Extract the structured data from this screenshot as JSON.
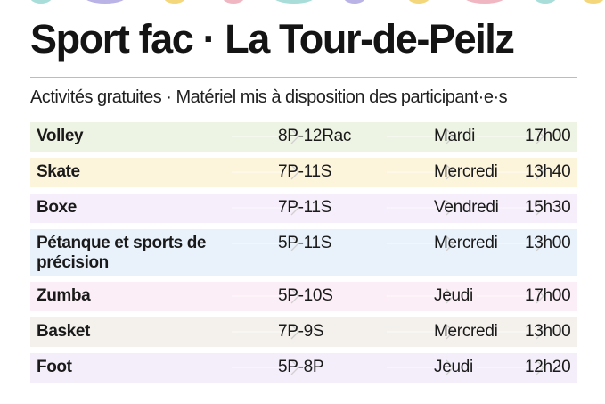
{
  "title": "Sport fac · La Tour-de-Peilz",
  "subtitle": "Activités gratuites · Matériel mis à disposition des participant·e·s",
  "colors": {
    "rule": "#e3a6c8",
    "row_tints": [
      "#eef4e4",
      "#fdf4dc",
      "#f6eefa",
      "#e9f2fb",
      "#fbeef6",
      "#f4f1ec",
      "#f3eefa"
    ],
    "arrow": "#d0d0d0",
    "dots": [
      "#a8ddd9",
      "#b9b3e6",
      "#f3d77a",
      "#f0b7c2",
      "#a8ddd9",
      "#b9b3e6",
      "#f3d77a",
      "#f0b7c2",
      "#a8ddd9",
      "#f3d77a"
    ]
  },
  "activities": [
    {
      "name": "Volley",
      "level": "8P-12Rac",
      "day": "Mardi",
      "time": "17h00"
    },
    {
      "name": "Skate",
      "level": "7P-11S",
      "day": "Mercredi",
      "time": "13h40"
    },
    {
      "name": "Boxe",
      "level": "7P-11S",
      "day": "Vendredi",
      "time": "15h30"
    },
    {
      "name": "Pétanque et sports de précision",
      "level": "5P-11S",
      "day": "Mercredi",
      "time": "13h00"
    },
    {
      "name": "Zumba",
      "level": "5P-10S",
      "day": "Jeudi",
      "time": "17h00"
    },
    {
      "name": "Basket",
      "level": "7P-9S",
      "day": "Mercredi",
      "time": "13h00"
    },
    {
      "name": "Foot",
      "level": "5P-8P",
      "day": "Jeudi",
      "time": "12h20"
    }
  ]
}
